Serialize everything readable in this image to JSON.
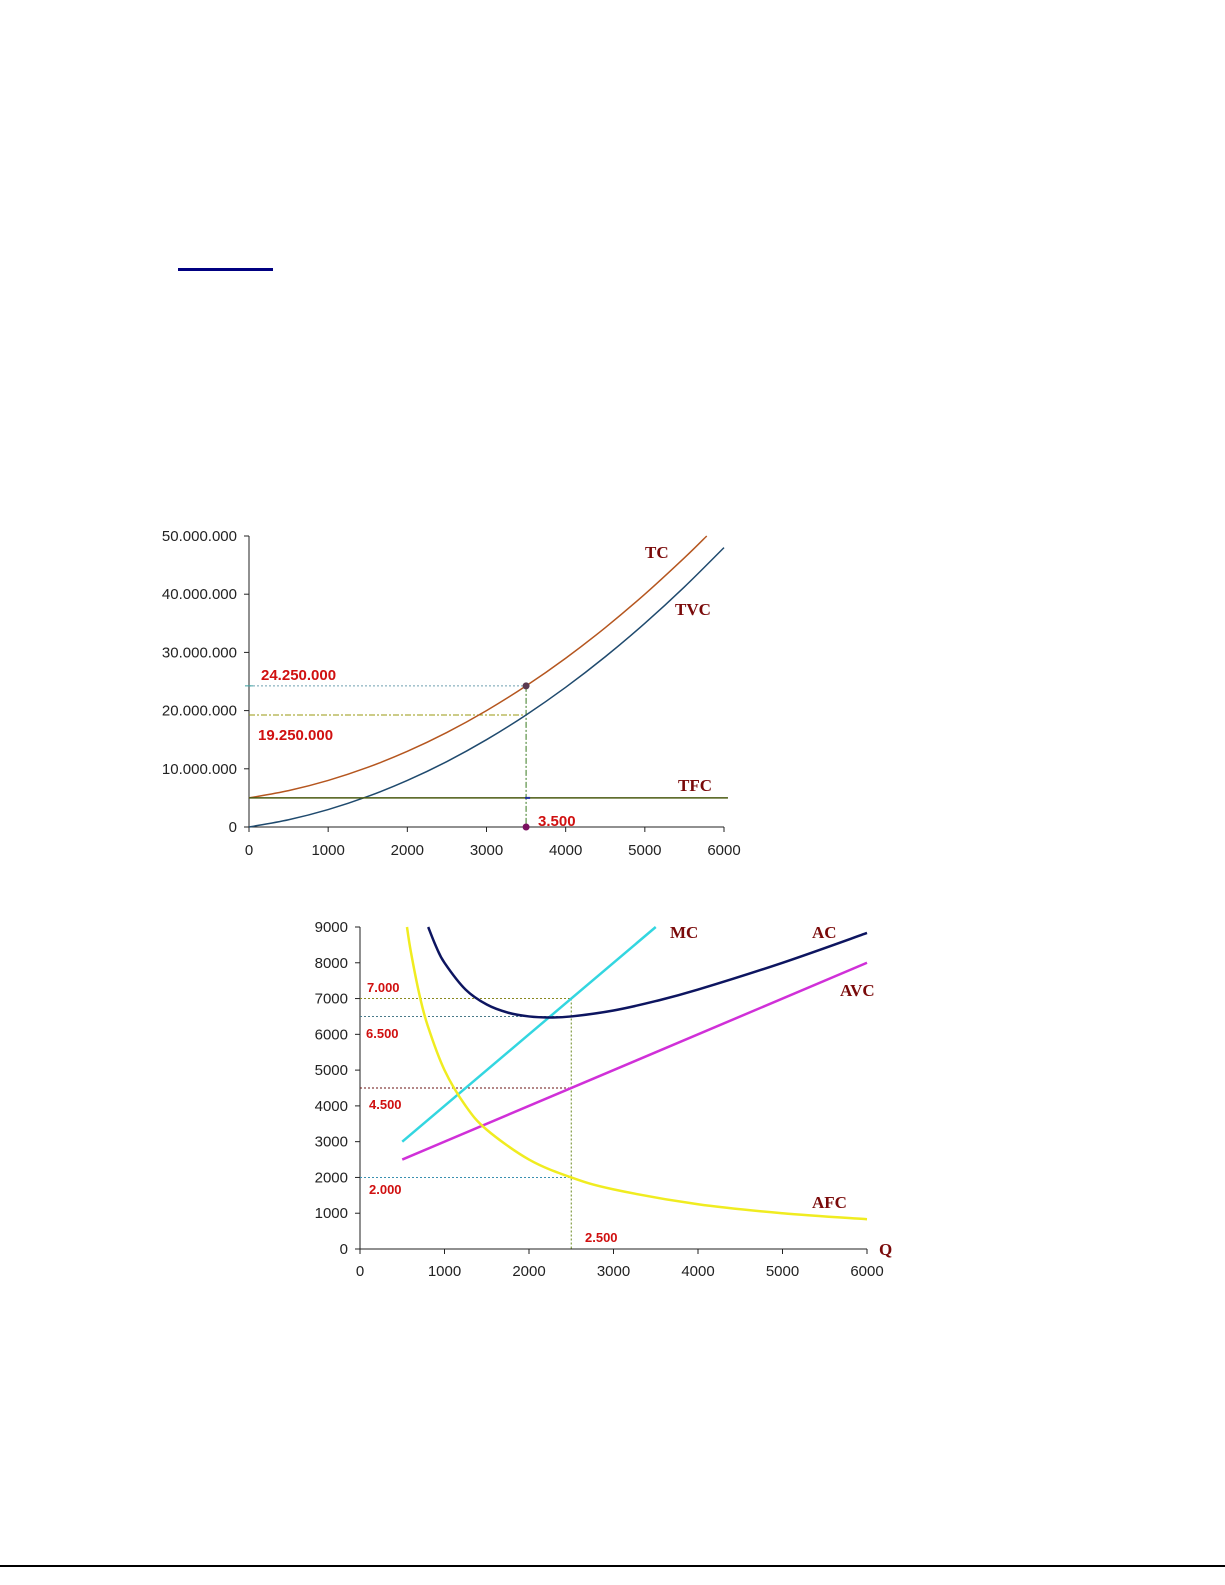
{
  "chart_data": [
    {
      "type": "line",
      "title": "",
      "xlabel": "",
      "ylabel": "",
      "xlim": [
        0,
        6000
      ],
      "ylim": [
        0,
        50000000
      ],
      "x_ticks": [
        "0",
        "1000",
        "2000",
        "3000",
        "4000",
        "5000",
        "6000"
      ],
      "y_ticks": [
        "0",
        "10.000.000",
        "20.000.000",
        "30.000.000",
        "40.000.000",
        "50.000.000"
      ],
      "series": [
        {
          "name": "TC",
          "color": "#b5561f",
          "x": [
            0,
            500,
            1000,
            1500,
            2000,
            2500,
            3000,
            3500,
            4000,
            4500,
            5000,
            5500,
            5782
          ],
          "y": [
            5000000,
            6250000,
            8000000,
            10250000,
            13000000,
            16250000,
            20000000,
            24250000,
            29000000,
            34250000,
            40000000,
            46250000,
            50000000
          ]
        },
        {
          "name": "TVC",
          "color": "#1f4a6e",
          "x": [
            0,
            500,
            1000,
            1500,
            2000,
            2500,
            3000,
            3500,
            4000,
            4500,
            5000,
            5500,
            6000
          ],
          "y": [
            0,
            1250000,
            3000000,
            5250000,
            8000000,
            11250000,
            15000000,
            19250000,
            24000000,
            29250000,
            35000000,
            41250000,
            48000000
          ]
        },
        {
          "name": "TFC",
          "color": "#4a5a10",
          "x": [
            0,
            6050
          ],
          "y": [
            5000000,
            5000000
          ]
        }
      ],
      "annotations": {
        "tc_value": {
          "text": "24.250.000",
          "y": 24250000
        },
        "tvc_value": {
          "text": "19.250.000",
          "y": 19250000
        },
        "q_value": {
          "text": "3.500",
          "x": 3500
        }
      }
    },
    {
      "type": "line",
      "title": "",
      "xlabel": "Q",
      "ylabel": "",
      "xlim": [
        0,
        6000
      ],
      "ylim": [
        0,
        9000
      ],
      "x_ticks": [
        "0",
        "1000",
        "2000",
        "3000",
        "4000",
        "5000",
        "6000"
      ],
      "y_ticks": [
        "0",
        "1000",
        "2000",
        "3000",
        "4000",
        "5000",
        "6000",
        "7000",
        "8000",
        "9000"
      ],
      "series": [
        {
          "name": "MC",
          "color": "#33d6e0",
          "x": [
            500,
            3500
          ],
          "y": [
            3000,
            9000
          ]
        },
        {
          "name": "AC",
          "color": "#0d1560",
          "x": [
            807,
            900,
            1000,
            1250,
            1500,
            1750,
            2000,
            2250,
            2500,
            3000,
            3500,
            4000,
            5000,
            6000
          ],
          "y": [
            9000,
            8456,
            8000,
            7250,
            6833,
            6607,
            6500,
            6472,
            6500,
            6667,
            6929,
            7250,
            8000,
            8833
          ]
        },
        {
          "name": "AVC",
          "color": "#d030d8",
          "x": [
            500,
            6000
          ],
          "y": [
            2500,
            8000
          ]
        },
        {
          "name": "AFC",
          "color": "#f0ec20",
          "x": [
            556,
            600,
            700,
            800,
            1000,
            1250,
            1500,
            2000,
            2500,
            3000,
            4000,
            5000,
            6000
          ],
          "y": [
            9000,
            8333,
            7143,
            6250,
            5000,
            4000,
            3333,
            2500,
            2000,
            1667,
            1250,
            1000,
            833
          ]
        }
      ],
      "annotations": {
        "mc_value": {
          "text": "7.000",
          "y": 7000
        },
        "ac_value": {
          "text": "6.500",
          "y": 6500
        },
        "avc_value": {
          "text": "4.500",
          "y": 4500
        },
        "afc_value": {
          "text": "2.000",
          "y": 2000
        },
        "q_value": {
          "text": "2.500",
          "x": 2500
        }
      }
    }
  ]
}
